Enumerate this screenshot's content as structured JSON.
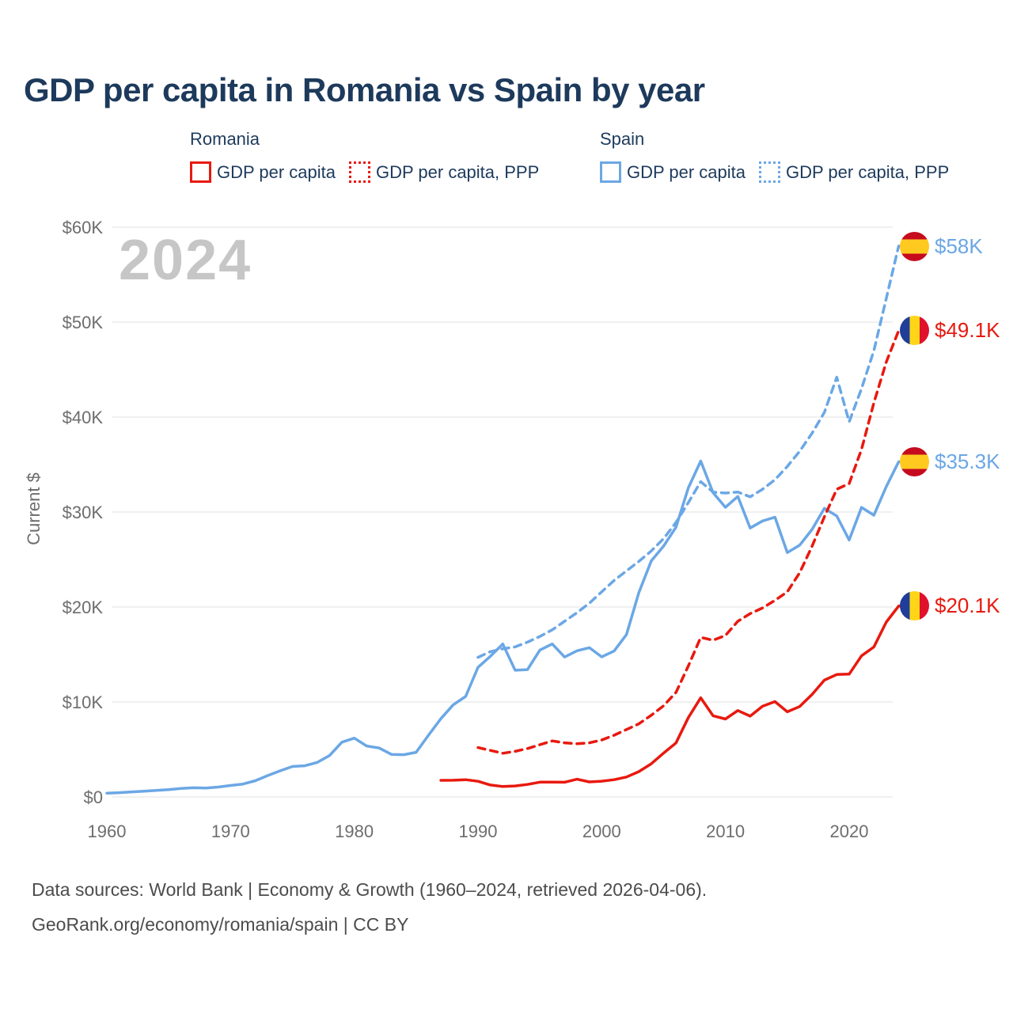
{
  "title": "GDP per capita in Romania vs Spain by year",
  "legend": {
    "groups": [
      {
        "label": "Romania",
        "color": "#e8190f",
        "items": [
          {
            "label": "GDP per capita",
            "style": "solid"
          },
          {
            "label": "GDP per capita, PPP",
            "style": "dotted"
          }
        ]
      },
      {
        "label": "Spain",
        "color": "#6ba7e5",
        "items": [
          {
            "label": "GDP per capita",
            "style": "solid"
          },
          {
            "label": "GDP per capita, PPP",
            "style": "dotted"
          }
        ]
      }
    ]
  },
  "chart_data": {
    "type": "line",
    "title": "GDP per capita in Romania vs Spain by year",
    "ylabel": "Current $",
    "xlabel": "",
    "watermark": "2024",
    "units": "thousand current US$",
    "xlim": [
      1960,
      2024
    ],
    "ylim": [
      0,
      62
    ],
    "grid": "horizontal",
    "legend_position": "top",
    "x_ticks": [
      1960,
      1970,
      1980,
      1990,
      2000,
      2010,
      2020
    ],
    "y_ticks": [
      {
        "label": "$0",
        "value": 0
      },
      {
        "label": "$10K",
        "value": 10
      },
      {
        "label": "$20K",
        "value": 20
      },
      {
        "label": "$30K",
        "value": 30
      },
      {
        "label": "$40K",
        "value": 40
      },
      {
        "label": "$50K",
        "value": 50
      },
      {
        "label": "$60K",
        "value": 60
      }
    ],
    "series": [
      {
        "name": "Spain GDP per capita",
        "color": "#6ba7e5",
        "dashed": false,
        "start_year": 1960,
        "end_label": "$35.3K",
        "values": [
          0.4,
          0.45,
          0.53,
          0.61,
          0.68,
          0.77,
          0.89,
          0.97,
          0.94,
          1.04,
          1.21,
          1.36,
          1.71,
          2.25,
          2.75,
          3.21,
          3.28,
          3.63,
          4.36,
          5.77,
          6.19,
          5.37,
          5.16,
          4.48,
          4.45,
          4.7,
          6.51,
          8.24,
          9.7,
          10.58,
          13.65,
          14.81,
          16.11,
          13.34,
          13.41,
          15.47,
          16.11,
          14.73,
          15.39,
          15.72,
          14.75,
          15.37,
          17.1,
          21.51,
          24.86,
          26.42,
          28.39,
          32.55,
          35.37,
          32.04,
          30.5,
          31.64,
          28.32,
          29.06,
          29.46,
          25.73,
          26.51,
          28.17,
          30.39,
          29.58,
          27.06,
          30.49,
          29.67,
          32.68,
          35.29
        ]
      },
      {
        "name": "Spain GDP per capita, PPP",
        "color": "#6ba7e5",
        "dashed": true,
        "start_year": 1990,
        "end_label": "$58K",
        "values": [
          14.7,
          15.3,
          15.6,
          15.8,
          16.3,
          16.9,
          17.6,
          18.5,
          19.4,
          20.4,
          21.6,
          22.8,
          23.8,
          24.8,
          25.9,
          27.2,
          28.9,
          31.0,
          33.2,
          32.1,
          32.0,
          32.1,
          31.6,
          32.4,
          33.4,
          34.8,
          36.4,
          38.3,
          40.5,
          44.2,
          39.5,
          43.0,
          47.0,
          52.5,
          58.0
        ]
      },
      {
        "name": "Romania GDP per capita, PPP",
        "color": "#e8190f",
        "dashed": true,
        "start_year": 1990,
        "end_label": "$49.1K",
        "values": [
          5.2,
          4.9,
          4.6,
          4.8,
          5.1,
          5.5,
          5.9,
          5.7,
          5.6,
          5.7,
          6.0,
          6.5,
          7.1,
          7.7,
          8.6,
          9.6,
          11.0,
          13.8,
          16.8,
          16.5,
          17.0,
          18.5,
          19.3,
          19.9,
          20.7,
          21.6,
          23.6,
          26.4,
          29.5,
          32.4,
          33.0,
          36.6,
          41.5,
          45.8,
          49.1
        ]
      },
      {
        "name": "Romania GDP per capita",
        "color": "#e8190f",
        "dashed": false,
        "start_year": 1987,
        "end_label": "$20.1K",
        "values": [
          1.75,
          1.76,
          1.82,
          1.65,
          1.26,
          1.1,
          1.16,
          1.32,
          1.56,
          1.56,
          1.55,
          1.87,
          1.58,
          1.66,
          1.82,
          2.1,
          2.67,
          3.49,
          4.62,
          5.68,
          8.36,
          10.44,
          8.55,
          8.21,
          9.1,
          8.51,
          9.55,
          10.04,
          8.97,
          9.52,
          10.79,
          12.3,
          12.89,
          12.93,
          14.86,
          15.79,
          18.42,
          20.1
        ]
      }
    ],
    "end_labels": [
      {
        "value": "$58K",
        "country": "spain",
        "color": "#6ba7e5",
        "y": 58
      },
      {
        "value": "$49.1K",
        "country": "romania",
        "color": "#e8190f",
        "y": 49.1
      },
      {
        "value": "$35.3K",
        "country": "spain",
        "color": "#6ba7e5",
        "y": 35.3
      },
      {
        "value": "$20.1K",
        "country": "romania",
        "color": "#e8190f",
        "y": 20.1
      }
    ]
  },
  "footer": {
    "line1": "Data sources: World Bank | Economy & Growth (1960–2024, retrieved 2026-04-06).",
    "line2": "GeoRank.org/economy/romania/spain | CC BY"
  }
}
